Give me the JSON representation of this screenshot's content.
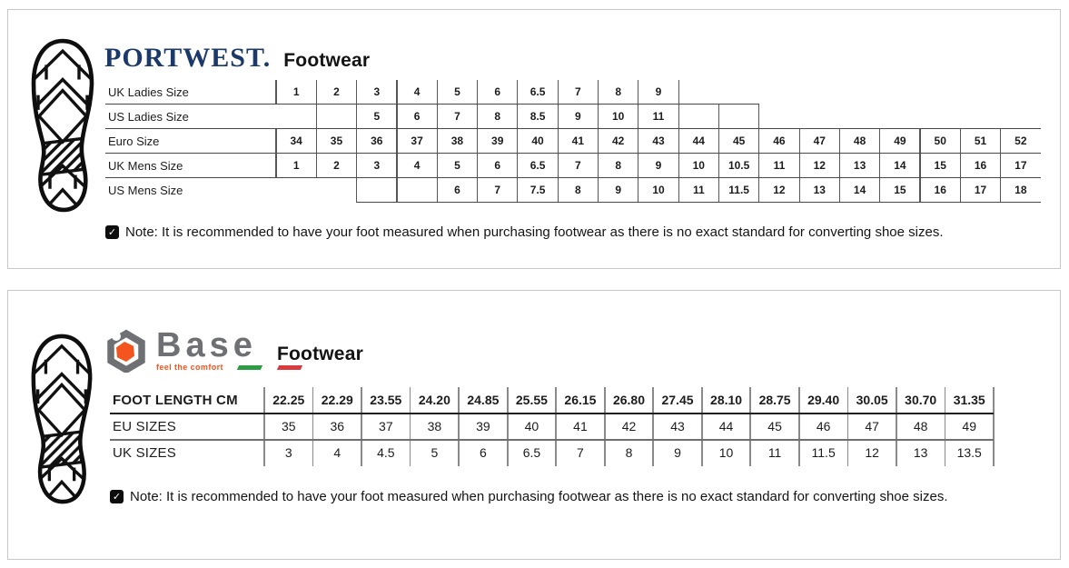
{
  "panels": {
    "portwest": {
      "brand": "PORTWEST.",
      "title": "Footwear",
      "table": {
        "rows": [
          {
            "label": "UK Ladies Size",
            "cells": [
              "1",
              "2",
              "3",
              "4",
              "5",
              "6",
              "6.5",
              "7",
              "8",
              "9",
              null,
              null,
              null,
              null,
              null,
              null,
              null,
              null,
              null
            ]
          },
          {
            "label": "US Ladies Size",
            "cells": [
              "",
              "",
              "5",
              "6",
              "7",
              "8",
              "8.5",
              "9",
              "10",
              "11",
              "",
              "",
              null,
              null,
              null,
              null,
              null,
              null,
              null
            ]
          },
          {
            "label": "Euro Size",
            "cells": [
              "34",
              "35",
              "36",
              "37",
              "38",
              "39",
              "40",
              "41",
              "42",
              "43",
              "44",
              "45",
              "46",
              "47",
              "48",
              "49",
              "50",
              "51",
              "52"
            ]
          },
          {
            "label": "UK Mens Size",
            "cells": [
              "1",
              "2",
              "3",
              "4",
              "5",
              "6",
              "6.5",
              "7",
              "8",
              "9",
              "10",
              "10.5",
              "11",
              "12",
              "13",
              "14",
              "15",
              "16",
              "17"
            ]
          },
          {
            "label": "US Mens Size",
            "cells": [
              null,
              null,
              "",
              "",
              "6",
              "7",
              "7.5",
              "8",
              "9",
              "10",
              "11",
              "11.5",
              "12",
              "13",
              "14",
              "15",
              "16",
              "17",
              "18"
            ]
          }
        ]
      },
      "note": "Note: It is recommended to have your foot measured when purchasing footwear as there is no exact standard for converting shoe sizes."
    },
    "base": {
      "brand": "Base",
      "tagline": "feel the comfort",
      "title": "Footwear",
      "table": {
        "rows": [
          {
            "label": "FOOT LENGTH CM",
            "cells": [
              "22.25",
              "22.29",
              "23.55",
              "24.20",
              "24.85",
              "25.55",
              "26.15",
              "26.80",
              "27.45",
              "28.10",
              "28.75",
              "29.40",
              "30.05",
              "30.70",
              "31.35"
            ]
          },
          {
            "label": "EU SIZES",
            "cells": [
              "35",
              "36",
              "37",
              "38",
              "39",
              "40",
              "41",
              "42",
              "43",
              "44",
              "45",
              "46",
              "47",
              "48",
              "49"
            ]
          },
          {
            "label": "UK SIZES",
            "cells": [
              "3",
              "4",
              "4.5",
              "5",
              "6",
              "6.5",
              "7",
              "8",
              "9",
              "10",
              "11",
              "11.5",
              "12",
              "13",
              "13.5"
            ]
          }
        ]
      },
      "note": "Note: It is recommended to have your foot measured when purchasing footwear as there is no exact standard for converting shoe sizes."
    }
  },
  "colors": {
    "portwest_navy": "#1c3a69",
    "base_gray": "#6f7073",
    "base_orange": "#f4541e",
    "flag_green": "#2f9b44",
    "flag_red": "#d83a3e",
    "grid_dark": "#48484b",
    "panel_border": "#c7c7c9"
  }
}
